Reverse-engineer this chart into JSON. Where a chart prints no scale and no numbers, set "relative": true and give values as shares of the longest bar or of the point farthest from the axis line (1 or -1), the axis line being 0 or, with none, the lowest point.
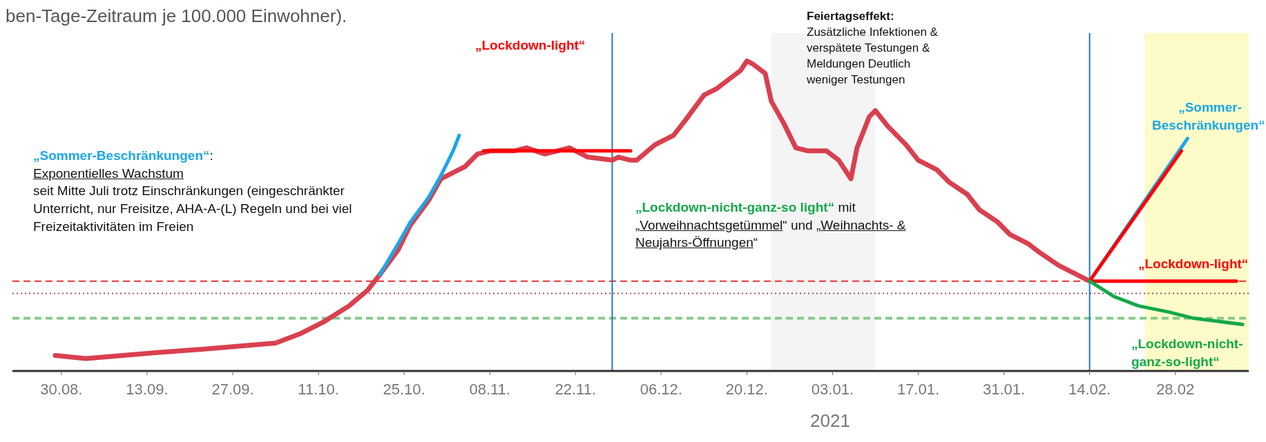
{
  "chart_data": {
    "type": "line",
    "relative": true,
    "title": "ben-Tage-Zeitraum je 100.000 Einwohner).",
    "xlim": [
      "2020-08-22",
      "2021-03-12"
    ],
    "xticks": [
      {
        "value": "2020-08-30",
        "label": "30.08."
      },
      {
        "value": "2020-09-13",
        "label": "13.09."
      },
      {
        "value": "2020-09-27",
        "label": "27.09."
      },
      {
        "value": "2020-10-11",
        "label": "11.10."
      },
      {
        "value": "2020-10-25",
        "label": "25.10."
      },
      {
        "value": "2020-11-08",
        "label": "08.11."
      },
      {
        "value": "2020-11-22",
        "label": "22.11."
      },
      {
        "value": "2020-12-06",
        "label": "06.12."
      },
      {
        "value": "2020-12-20",
        "label": "20.12."
      },
      {
        "value": "2021-01-03",
        "label": "03.01."
      },
      {
        "value": "2021-01-17",
        "label": "17.01."
      },
      {
        "value": "2021-01-31",
        "label": "31.01."
      },
      {
        "value": "2021-02-14",
        "label": "14.02."
      },
      {
        "value": "2021-02-28",
        "label": "28.02"
      }
    ],
    "series": [
      {
        "color": "#d9404f",
        "x": [
          "2020-08-29",
          "2020-09-03",
          "2020-09-09",
          "2020-09-15",
          "2020-09-22",
          "2020-09-28",
          "2020-10-04",
          "2020-10-08",
          "2020-10-12",
          "2020-10-16",
          "2020-10-19",
          "2020-10-21",
          "2020-10-24",
          "2020-10-26",
          "2020-10-29",
          "2020-10-31",
          "2020-11-02",
          "2020-11-04",
          "2020-11-06",
          "2020-11-08",
          "2020-11-12",
          "2020-11-14",
          "2020-11-17",
          "2020-11-19",
          "2020-11-21",
          "2020-11-24",
          "2020-11-28",
          "2020-11-29",
          "2020-12-01",
          "2020-12-02",
          "2020-12-05",
          "2020-12-08",
          "2020-12-10",
          "2020-12-13",
          "2020-12-15",
          "2020-12-17",
          "2020-12-19",
          "2020-12-20",
          "2020-12-21",
          "2020-12-23",
          "2020-12-24",
          "2020-12-26",
          "2020-12-28",
          "2020-12-30",
          "2021-01-02",
          "2021-01-04",
          "2021-01-06",
          "2021-01-07",
          "2021-01-09",
          "2021-01-10",
          "2021-01-12",
          "2021-01-15",
          "2021-01-17",
          "2021-01-20",
          "2021-01-22",
          "2021-01-25",
          "2021-01-27",
          "2021-01-30",
          "2021-02-01",
          "2021-02-04",
          "2021-02-06",
          "2021-02-09",
          "2021-02-12",
          "2021-02-14"
        ],
        "values": [
          0.05,
          0.04,
          0.05,
          0.06,
          0.07,
          0.08,
          0.09,
          0.12,
          0.16,
          0.21,
          0.26,
          0.31,
          0.39,
          0.47,
          0.55,
          0.62,
          0.64,
          0.66,
          0.7,
          0.71,
          0.71,
          0.72,
          0.7,
          0.71,
          0.72,
          0.69,
          0.68,
          0.69,
          0.68,
          0.68,
          0.73,
          0.76,
          0.81,
          0.89,
          0.91,
          0.94,
          0.97,
          1.0,
          0.99,
          0.96,
          0.87,
          0.8,
          0.72,
          0.71,
          0.71,
          0.68,
          0.62,
          0.72,
          0.82,
          0.84,
          0.79,
          0.73,
          0.68,
          0.65,
          0.61,
          0.57,
          0.52,
          0.48,
          0.44,
          0.41,
          0.38,
          0.34,
          0.31,
          0.29
        ]
      },
      {
        "color": "#1aa7e8",
        "x": [
          "2020-10-21",
          "2020-10-24",
          "2020-10-26",
          "2020-10-29",
          "2020-10-31",
          "2020-11-02",
          "2020-11-03"
        ],
        "values": [
          0.31,
          0.41,
          0.48,
          0.56,
          0.63,
          0.71,
          0.76
        ]
      },
      {
        "color": "#ff0000",
        "x": [
          "2020-11-07",
          "2020-12-01"
        ],
        "values": [
          0.71,
          0.71
        ]
      },
      {
        "color": "#1aa7e8",
        "x": [
          "2021-02-14",
          "2021-03-02"
        ],
        "values": [
          0.29,
          0.75
        ]
      },
      {
        "color": "#ff0000",
        "x": [
          "2021-02-14",
          "2021-03-01"
        ],
        "values": [
          0.29,
          0.71
        ]
      },
      {
        "color": "#ff0000",
        "x": [
          "2021-02-14",
          "2021-03-10"
        ],
        "values": [
          0.29,
          0.29
        ]
      },
      {
        "color": "#14a84a",
        "x": [
          "2021-02-14",
          "2021-02-18",
          "2021-02-22",
          "2021-02-27",
          "2021-03-03",
          "2021-03-07",
          "2021-03-11"
        ],
        "values": [
          0.29,
          0.24,
          0.21,
          0.19,
          0.17,
          0.16,
          0.15
        ]
      }
    ],
    "ref_lines": [
      {
        "axis": "y",
        "value": 0.29,
        "color": "#e53030",
        "line_style": "dashed"
      },
      {
        "axis": "y",
        "value": 0.25,
        "color": "#a05050",
        "line_style": "dotted"
      },
      {
        "axis": "y",
        "value": 0.17,
        "color": "#86c98c",
        "line_style": "dashed"
      },
      {
        "axis": "x",
        "value": "2020-11-28",
        "color": "#1f77c4",
        "line_style": "solid"
      },
      {
        "axis": "x",
        "value": "2021-02-14",
        "color": "#1f77c4",
        "line_style": "solid"
      }
    ],
    "bands": [
      {
        "axis": "x",
        "from": "2020-12-24",
        "to": "2021-01-10",
        "color": "#f4f4f4"
      },
      {
        "axis": "x",
        "from": "2021-02-23",
        "to": "2021-03-12",
        "color": "#fdfbc8"
      }
    ],
    "annotations": [
      "„Sommer-Beschränkungen“",
      ":",
      "Exponentielles Wachstum",
      " seit Mitte Juli trotz Einschränkungen (eingeschränkter Unterricht, nur Freisitze, AHA-A-(L) Regeln  und bei viel Freizeitaktivitäten im Freien",
      "„Lockdown-light“",
      "Feiertagseffekt:",
      "Zusätzliche Infektionen & verspätete Testungen & Meldungen Deutlich weniger Testungen",
      "„Lockdown-nicht-ganz-so light“",
      " mit „",
      "Vorweihnachtsgetümmel",
      "“ und „",
      "Weihnachts- & Neujahrs-Öffnungen",
      "“",
      "„Sommer-Beschränkungen“",
      "„Lockdown-light“",
      "„Lockdown-nicht-ganz-so-light“",
      "2021"
    ]
  }
}
